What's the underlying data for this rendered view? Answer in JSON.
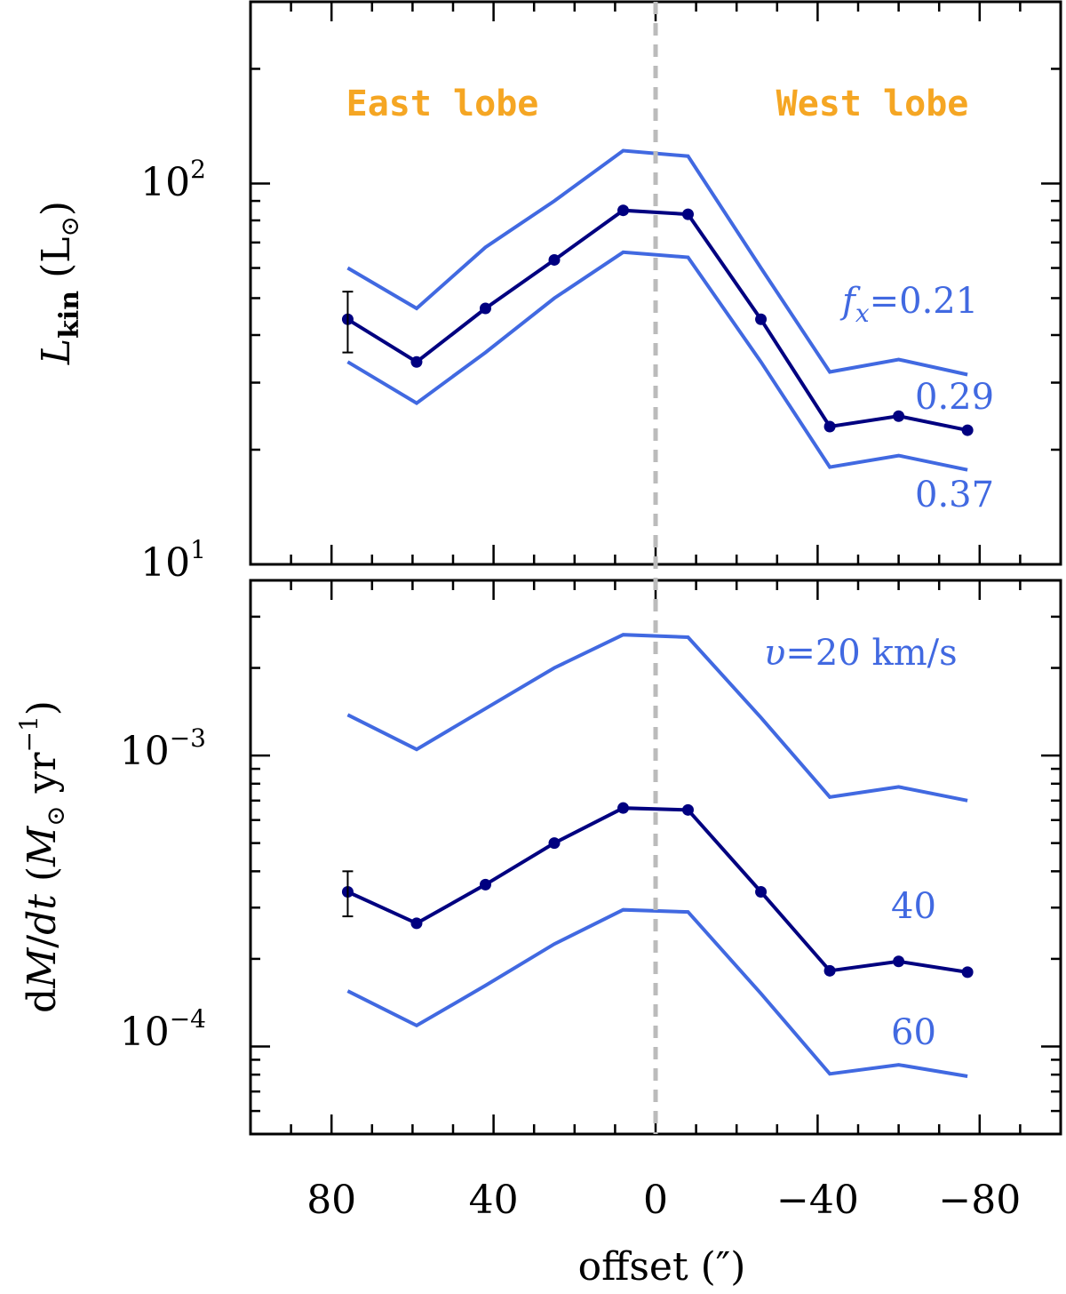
{
  "chart_data": [
    {
      "type": "line",
      "panel": "top",
      "yscale": "log",
      "ylabel": {
        "main": "L",
        "sub": "kin",
        "unit_open": " (L",
        "unit_sub": "⊙",
        "unit_close": ")"
      },
      "ylim": [
        10,
        300
      ],
      "y_tick_labels": [
        {
          "base": "10",
          "exp": "2",
          "value": 100
        },
        {
          "base": "10",
          "exp": "1",
          "value": 10
        }
      ],
      "xlim": [
        100,
        -100
      ],
      "x": [
        76,
        59,
        42,
        25,
        8,
        -8,
        -26,
        -43,
        -60,
        -77
      ],
      "series": [
        {
          "name": "f_x=0.29",
          "color": "#000080",
          "markers": true,
          "values": [
            44,
            34,
            47,
            63,
            85,
            83,
            44,
            23,
            24.5,
            22.5
          ]
        },
        {
          "name": "f_x=0.21",
          "color": "#4169e1",
          "markers": false,
          "values": [
            60,
            47,
            68,
            90,
            122,
            118,
            60,
            32,
            34.5,
            31.5
          ]
        },
        {
          "name": "f_x=0.37",
          "color": "#4169e1",
          "markers": false,
          "values": [
            34,
            26.5,
            36,
            50,
            66,
            64,
            34,
            18,
            19.3,
            17.7
          ]
        }
      ],
      "error_bar": {
        "x": 76,
        "low": 36,
        "high": 52
      },
      "region_labels": [
        "East lobe",
        "West lobe"
      ],
      "annotations": {
        "fx_label": "f",
        "fx_sub": "x",
        "fx_value": "=0.21",
        "mid": "0.29",
        "low": "0.37"
      }
    },
    {
      "type": "line",
      "panel": "bottom",
      "yscale": "log",
      "ylabel": {
        "d": "d",
        "M": "M",
        "slash": "/",
        "dt": "dt",
        "open": " (",
        "Msun": "M",
        "sun_sub": "⊙",
        "yr": " yr",
        "exp": "−1",
        "close": ")"
      },
      "ylim": [
        5e-05,
        0.004
      ],
      "y_tick_labels": [
        {
          "base": "10",
          "exp": "−3",
          "value": 0.001
        },
        {
          "base": "10",
          "exp": "−4",
          "value": 0.0001
        }
      ],
      "xlim": [
        100,
        -100
      ],
      "x": [
        76,
        59,
        42,
        25,
        8,
        -8,
        -26,
        -43,
        -60,
        -77
      ],
      "series": [
        {
          "name": "v=40",
          "color": "#000080",
          "markers": true,
          "values": [
            0.00034,
            0.000265,
            0.00036,
            0.0005,
            0.00066,
            0.00065,
            0.00034,
            0.000182,
            0.000196,
            0.00018
          ]
        },
        {
          "name": "v=20",
          "color": "#4169e1",
          "markers": false,
          "values": [
            0.00138,
            0.00105,
            0.00145,
            0.002,
            0.0026,
            0.00255,
            0.00135,
            0.00072,
            0.00078,
            0.0007
          ]
        },
        {
          "name": "v=60",
          "color": "#4169e1",
          "markers": false,
          "values": [
            0.000155,
            0.000118,
            0.000162,
            0.000225,
            0.000295,
            0.00029,
            0.000152,
            8.05e-05,
            8.65e-05,
            7.9e-05
          ]
        }
      ],
      "error_bar": {
        "x": 76,
        "low": 0.00028,
        "high": 0.0004
      },
      "annotations": {
        "v_symbol": "υ",
        "v_value": "=20 km/s",
        "mid": "40",
        "low": "60"
      }
    }
  ],
  "x_axis": {
    "label": "offset (″)",
    "ticks": [
      {
        "value": 80,
        "label": "80"
      },
      {
        "value": 40,
        "label": "40"
      },
      {
        "value": 0,
        "label": "0"
      },
      {
        "value": -40,
        "label": "−40"
      },
      {
        "value": -80,
        "label": "−80"
      }
    ],
    "minor": [
      100,
      90,
      70,
      60,
      50,
      30,
      20,
      10,
      -10,
      -20,
      -30,
      -50,
      -60,
      -70,
      -90,
      -100
    ],
    "zero_line": 0
  },
  "colors": {
    "dark": "#000080",
    "light": "#4169e1",
    "lobe": "#f5a623",
    "zero": "#bbbbbb"
  }
}
